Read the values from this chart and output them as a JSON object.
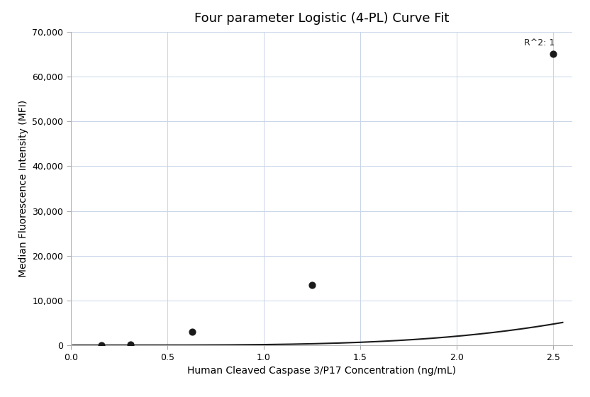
{
  "title": "Four parameter Logistic (4-PL) Curve Fit",
  "xlabel": "Human Cleaved Caspase 3/P17 Concentration (ng/mL)",
  "ylabel": "Median Fluorescence Intensity (MFI)",
  "data_points_x": [
    0.16,
    0.31,
    0.63,
    1.25,
    2.5
  ],
  "data_points_y": [
    100,
    250,
    3000,
    13500,
    65000
  ],
  "xlim": [
    0,
    2.6
  ],
  "ylim": [
    0,
    70000
  ],
  "yticks": [
    0,
    10000,
    20000,
    30000,
    40000,
    50000,
    60000,
    70000
  ],
  "xticks": [
    0,
    0.5,
    1.0,
    1.5,
    2.0,
    2.5
  ],
  "r_squared_label": "R^2: 1",
  "r_squared_x": 2.35,
  "r_squared_y": 68500,
  "line_color": "#1a1a1a",
  "marker_color": "#1a1a1a",
  "background_color": "#ffffff",
  "grid_color": "#c8d4e8",
  "title_fontsize": 13,
  "label_fontsize": 10,
  "tick_fontsize": 9,
  "annotation_fontsize": 9
}
